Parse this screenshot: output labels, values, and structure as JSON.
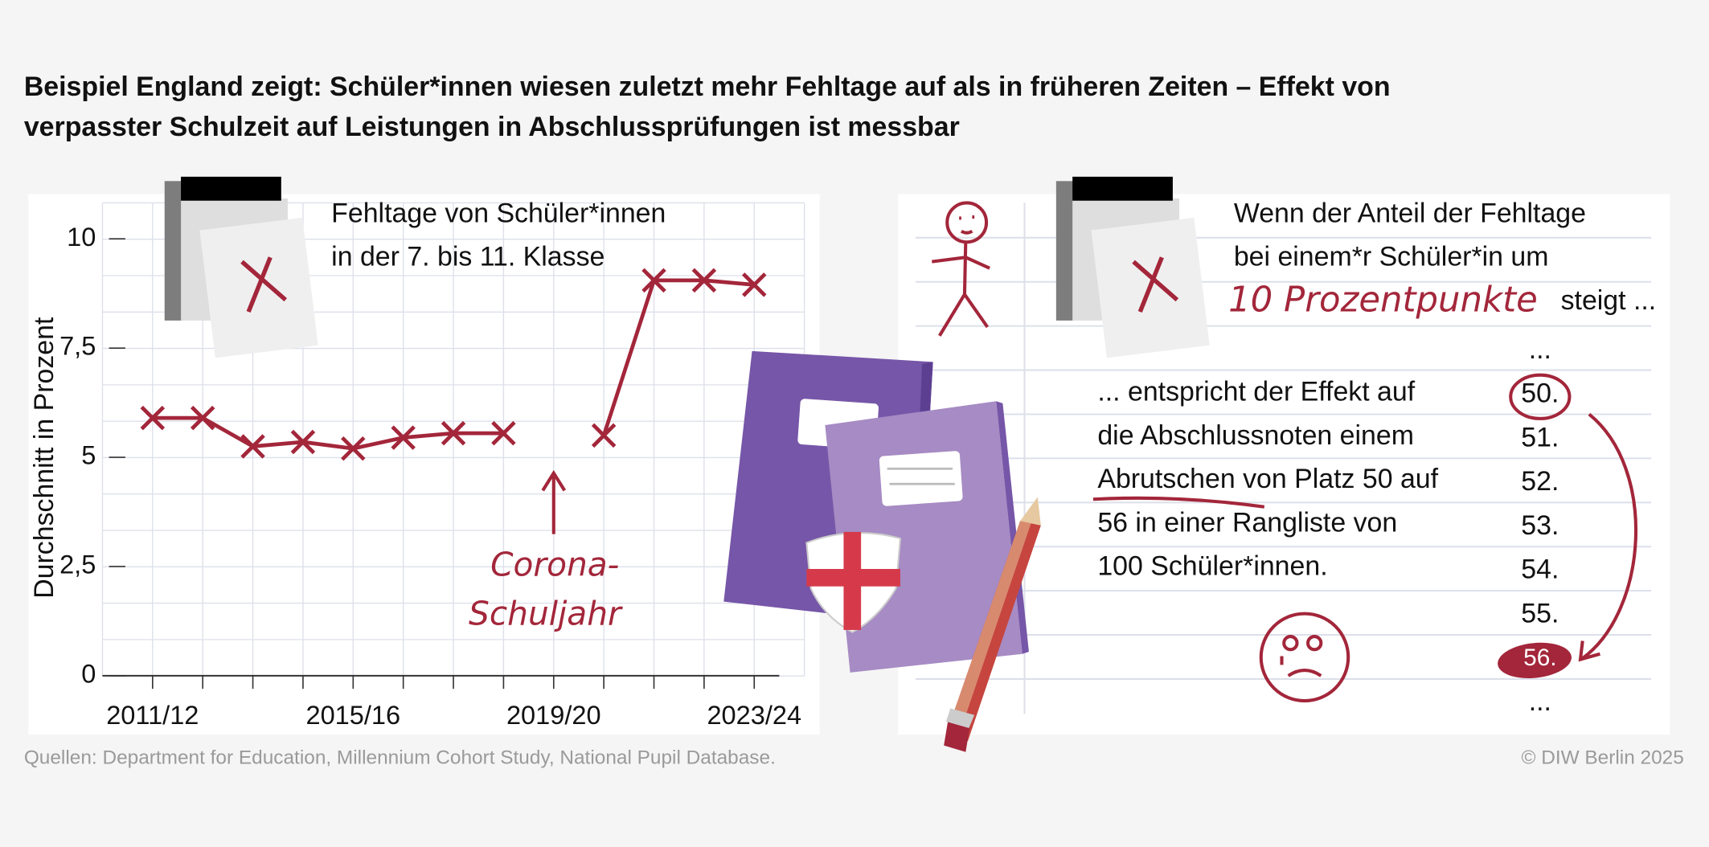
{
  "title": [
    "Beispiel England zeigt: Schüler*innen wiesen zuletzt mehr Fehltage auf als in früheren Zeiten – Effekt von",
    "verpasster Schulzeit auf Leistungen in Abschlussprüfungen ist messbar"
  ],
  "chart_data": {
    "type": "line",
    "subtitle": [
      "Fehltage von Schüler*innen",
      "in der 7. bis 11. Klasse"
    ],
    "y_label": "Durchschnitt in Prozent",
    "categories": [
      "2011/12",
      null,
      null,
      null,
      "2015/16",
      null,
      null,
      null,
      "2019/20",
      null,
      null,
      null,
      "2023/24"
    ],
    "values": [
      5.9,
      5.9,
      5.25,
      5.35,
      5.2,
      5.45,
      5.55,
      5.55,
      null,
      5.5,
      9.05,
      9.05,
      8.95
    ],
    "color": "#a3263a",
    "ylim": [
      0,
      10.5
    ],
    "yticks": [
      0,
      {
        "value": 2.5,
        "label": "2,5"
      },
      5,
      {
        "value": 7.5,
        "label": "7,5"
      },
      10
    ],
    "annotation": [
      "Corona-",
      "Schuljahr"
    ]
  },
  "right_panel": {
    "heading": [
      "Wenn der Anteil der Fehltage",
      "bei einem*r Schüler*in um"
    ],
    "highlight": "10 Prozentpunkte",
    "heading_end": "steigt ...",
    "body": [
      "... entspricht der Effekt auf",
      "die Abschlussnoten einem",
      "Abrutschen von Platz 50 auf",
      "56 in einer Rangliste von",
      "100 Schüler*innen."
    ],
    "ranks": [
      "...",
      "50.",
      "51.",
      "52.",
      "53.",
      "54.",
      "55.",
      "56.",
      "..."
    ]
  },
  "source": "Quellen: Department for Education, Millennium Cohort Study, National Pupil Database.",
  "copyright": "© DIW Berlin 2025"
}
